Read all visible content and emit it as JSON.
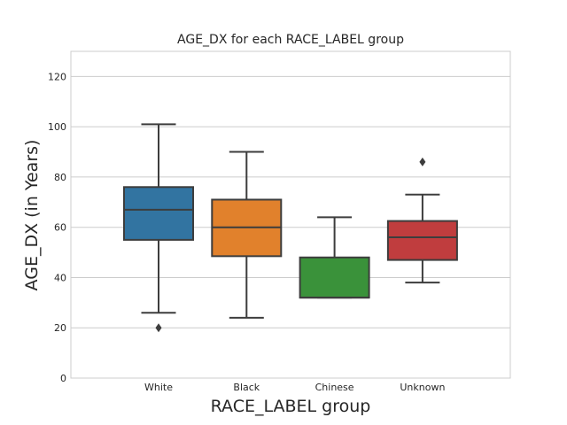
{
  "chart_data": {
    "type": "boxplot",
    "title": "AGE_DX for each RACE_LABEL group",
    "xlabel": "RACE_LABEL group",
    "ylabel": "AGE_DX (in Years)",
    "ylim": [
      0,
      130
    ],
    "yticks": [
      0,
      20,
      40,
      60,
      80,
      100,
      120
    ],
    "grid": "horizontal",
    "categories": [
      "White",
      "Black",
      "Chinese",
      "Unknown"
    ],
    "boxes": [
      {
        "category": "White",
        "color": "#3274a1",
        "whislo": 26,
        "q1": 55,
        "med": 67,
        "q3": 76,
        "whishi": 101,
        "fliers": [
          20
        ]
      },
      {
        "category": "Black",
        "color": "#e1812c",
        "whislo": 24,
        "q1": 48.5,
        "med": 60,
        "q3": 71,
        "whishi": 90,
        "fliers": []
      },
      {
        "category": "Chinese",
        "color": "#3a923a",
        "whislo": 32,
        "q1": 32,
        "med": 32,
        "q3": 48,
        "whishi": 64,
        "fliers": []
      },
      {
        "category": "Unknown",
        "color": "#c03d3e",
        "whislo": 38,
        "q1": 47,
        "med": 56,
        "q3": 62.5,
        "whishi": 73,
        "fliers": [
          86
        ]
      }
    ]
  }
}
